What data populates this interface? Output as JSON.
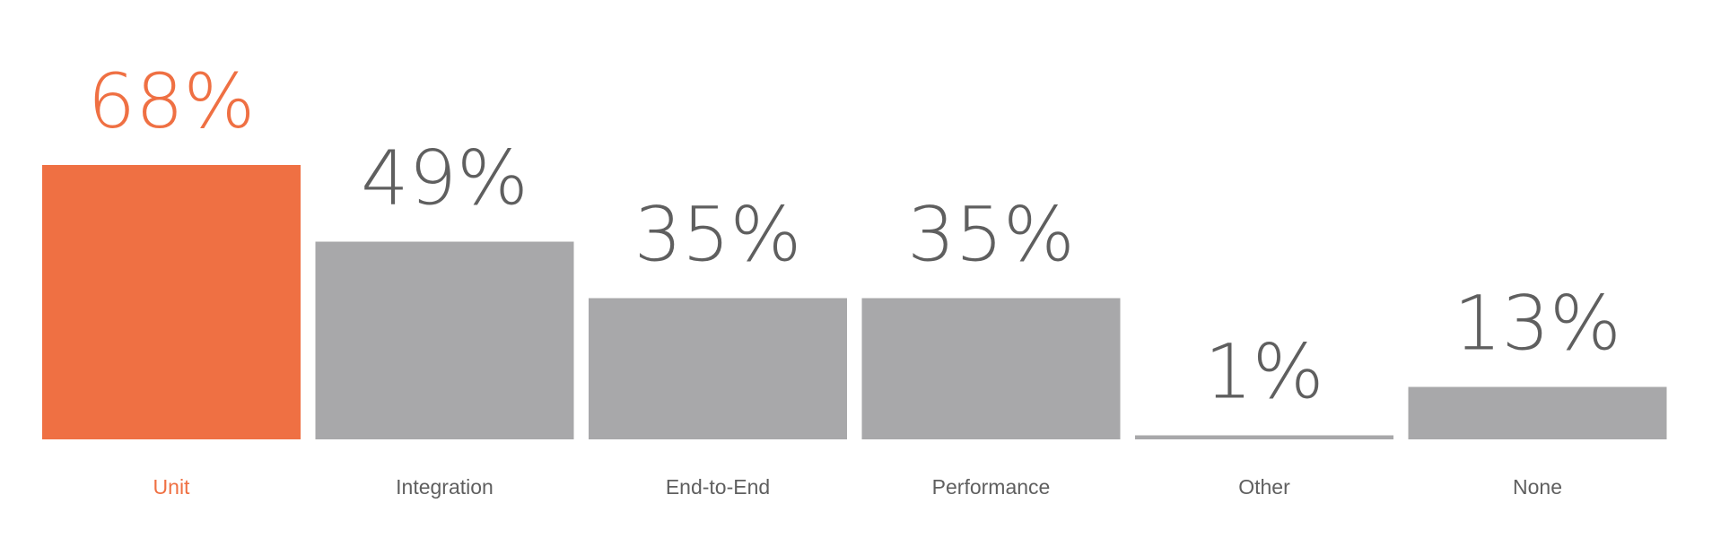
{
  "chart_data": {
    "type": "bar",
    "title": "",
    "xlabel": "",
    "ylabel": "",
    "categories": [
      "Unit",
      "Integration",
      "End-to-End",
      "Performance",
      "Other",
      "None"
    ],
    "values": [
      68,
      49,
      35,
      35,
      1,
      13
    ],
    "value_labels": [
      "68%",
      "49%",
      "35%",
      "35%",
      "1%",
      "13%"
    ],
    "unit": "%",
    "ylim": [
      0,
      100
    ],
    "grid": false,
    "legend": "none",
    "highlight_index": 0
  },
  "colors": {
    "highlight": "#EF7043",
    "bar": "#A8A8AA",
    "value_text": "#5F5F5F",
    "category_text": "#5F5F5F",
    "highlight_text": "#EF7043"
  }
}
